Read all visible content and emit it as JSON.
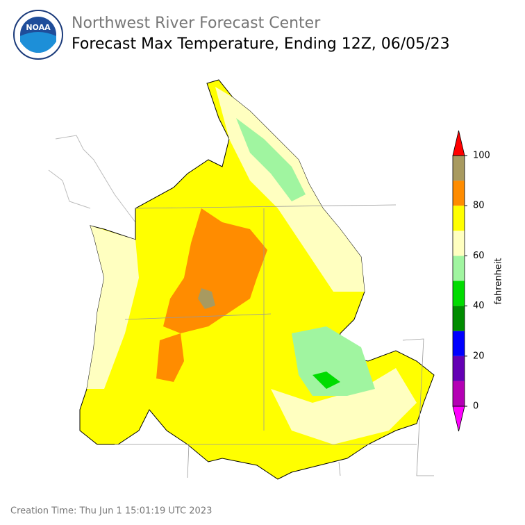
{
  "header": {
    "org": "Northwest River Forecast Center",
    "title": "Forecast Max Temperature, Ending 12Z, 06/05/23",
    "logo_text": "NOAA"
  },
  "colorbar": {
    "label": "fahrenheit",
    "ticks": [
      0,
      20,
      40,
      60,
      80,
      100
    ],
    "bounds": [
      0,
      10,
      20,
      30,
      40,
      50,
      60,
      70,
      80,
      90,
      100
    ],
    "colors": [
      "#b400b4",
      "#6400b4",
      "#0000ff",
      "#008c00",
      "#00dc00",
      "#a0f5a0",
      "#ffffc0",
      "#ffff00",
      "#ff8c00",
      "#a89a60"
    ],
    "under_color": "#ff00ff",
    "over_color": "#ff0000"
  },
  "footer": {
    "creation_time": "Creation Time: Thu Jun 1 15:01:19 UTC 2023"
  }
}
